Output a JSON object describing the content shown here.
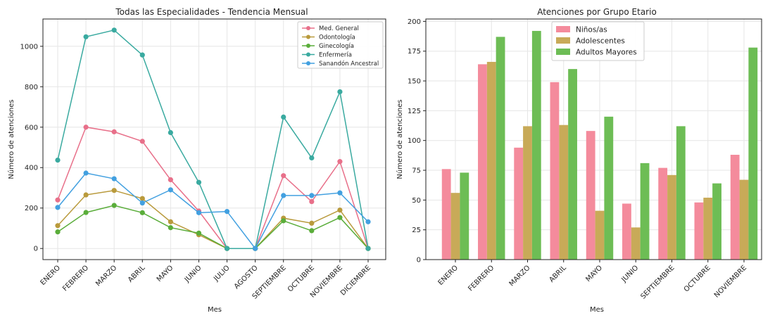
{
  "chart_data": [
    {
      "type": "line",
      "title": "Todas las Especialidades - Tendencia Mensual",
      "xlabel": "Mes",
      "ylabel": "Número de atenciones",
      "categories": [
        "ENERO",
        "FEBRERO",
        "MARZO",
        "ABRIL",
        "MAYO",
        "JUNIO",
        "JULIO",
        "AGOSTO",
        "SEPTIEMBRE",
        "OCTUBRE",
        "NOVIEMBRE",
        "DICIEMBRE"
      ],
      "ylim": [
        -55,
        1135
      ],
      "yticks": [
        0,
        200,
        400,
        600,
        800,
        1000
      ],
      "grid": true,
      "legend": "top-right",
      "series": [
        {
          "name": "Med. General",
          "color": "#e8708a",
          "values": [
            240,
            600,
            577,
            530,
            340,
            185,
            0,
            0,
            360,
            232,
            430,
            0
          ]
        },
        {
          "name": "Odontología",
          "color": "#b99a3c",
          "values": [
            113,
            265,
            287,
            247,
            132,
            68,
            0,
            0,
            150,
            125,
            190,
            0
          ]
        },
        {
          "name": "Ginecología",
          "color": "#5aad3a",
          "values": [
            82,
            178,
            213,
            177,
            103,
            76,
            0,
            0,
            137,
            88,
            153,
            0
          ]
        },
        {
          "name": "Enfermería",
          "color": "#3aaaa0",
          "values": [
            437,
            1047,
            1080,
            957,
            573,
            327,
            0,
            0,
            650,
            448,
            775,
            0
          ]
        },
        {
          "name": "Sanandón Ancestral",
          "color": "#42a0e0",
          "values": [
            203,
            373,
            345,
            225,
            290,
            177,
            183,
            0,
            262,
            262,
            275,
            132
          ]
        }
      ]
    },
    {
      "type": "bar",
      "title": "Atenciones por Grupo Etario",
      "xlabel": "Mes",
      "ylabel": "Número de atenciones",
      "categories": [
        "ENERO",
        "FEBRERO",
        "MARZO",
        "ABRIL",
        "MAYO",
        "JUNIO",
        "SEPTIEMBRE",
        "OCTUBRE",
        "NOVIEMBRE"
      ],
      "ylim": [
        0,
        202
      ],
      "yticks": [
        0,
        25,
        50,
        75,
        100,
        125,
        150,
        175,
        200
      ],
      "grid": true,
      "legend": "top-left",
      "series": [
        {
          "name": "Niños/as",
          "color": "#f48b9c",
          "values": [
            76,
            164,
            94,
            149,
            108,
            47,
            77,
            48,
            88
          ]
        },
        {
          "name": "Adolescentes",
          "color": "#c8aa58",
          "values": [
            56,
            166,
            112,
            113,
            41,
            27,
            71,
            52,
            67
          ]
        },
        {
          "name": "Adultos Mayores",
          "color": "#6dbd55",
          "values": [
            73,
            187,
            192,
            160,
            120,
            81,
            112,
            64,
            178
          ]
        }
      ]
    }
  ]
}
